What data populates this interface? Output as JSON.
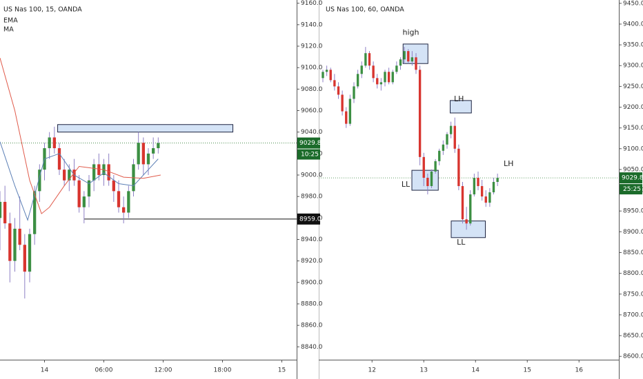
{
  "chart_data": [
    {
      "type": "candlestick",
      "title": "US Nas 100, 15, OANDA",
      "xlim": [
        -4.5,
        25.5
      ],
      "ylim": [
        8828,
        9163
      ],
      "xticks": [
        {
          "value": 0,
          "label": "14"
        },
        {
          "value": 6,
          "label": "06:00"
        },
        {
          "value": 12,
          "label": "12:00"
        },
        {
          "value": 18,
          "label": "18:00"
        },
        {
          "value": 24,
          "label": "15"
        }
      ],
      "yticks": [
        {
          "value": 9160,
          "label": "9160.0"
        },
        {
          "value": 9140,
          "label": "9140.0"
        },
        {
          "value": 9120,
          "label": "9120.0"
        },
        {
          "value": 9100,
          "label": "9100.0"
        },
        {
          "value": 9080,
          "label": "9080.0"
        },
        {
          "value": 9060,
          "label": "9060.0"
        },
        {
          "value": 9040,
          "label": "9040.0"
        },
        {
          "value": 9020,
          "label": "9020.0"
        },
        {
          "value": 9000,
          "label": "9000.0"
        },
        {
          "value": 8980,
          "label": "8980.0"
        },
        {
          "value": 8960,
          "label": "8960.0"
        },
        {
          "value": 8940,
          "label": "8940.0"
        },
        {
          "value": 8920,
          "label": "8920.0"
        },
        {
          "value": 8900,
          "label": "8900.0"
        },
        {
          "value": 8880,
          "label": "8880.0"
        },
        {
          "value": 8860,
          "label": "8860.0"
        },
        {
          "value": 8840,
          "label": "8840.0"
        }
      ],
      "up_color": "#3c8f43",
      "down_color": "#d8352f",
      "wick_color": "#8d7fc4",
      "x": [
        -4.5,
        -4.0,
        -3.5,
        -3.0,
        -2.5,
        -2.0,
        -1.5,
        -1.0,
        -0.5,
        0.0,
        0.5,
        1.0,
        1.5,
        2.0,
        2.5,
        3.0,
        3.5,
        4.0,
        4.5,
        5.0,
        5.5,
        6.0,
        6.5,
        7.0,
        7.5,
        8.0,
        8.5,
        9.0,
        9.5,
        10.0,
        10.5,
        11.0,
        11.5
      ],
      "open": [
        8960,
        8975,
        8955,
        8920,
        8950,
        8935,
        8910,
        8945,
        8985,
        9005,
        9025,
        9035,
        9025,
        9005,
        8995,
        9005,
        8995,
        8970,
        8980,
        8995,
        9010,
        9000,
        9010,
        8995,
        8985,
        8970,
        8965,
        8985,
        9010,
        9030,
        9010,
        9020,
        9025
      ],
      "high": [
        8985,
        8990,
        8965,
        8960,
        8980,
        8945,
        8950,
        8990,
        9010,
        9030,
        9040,
        9045,
        9030,
        9015,
        9010,
        9015,
        9000,
        8985,
        9000,
        9015,
        9020,
        9015,
        9020,
        9000,
        8995,
        8980,
        8990,
        9015,
        9040,
        9035,
        9025,
        9035,
        9035
      ],
      "low": [
        8930,
        8950,
        8900,
        8910,
        8930,
        8885,
        8900,
        8935,
        8975,
        8995,
        9015,
        9020,
        9000,
        8990,
        8985,
        8990,
        8965,
        8955,
        8970,
        8985,
        8995,
        8990,
        8990,
        8975,
        8965,
        8955,
        8960,
        8980,
        9005,
        9000,
        9000,
        9015,
        9020
      ],
      "close": [
        8975,
        8955,
        8920,
        8950,
        8935,
        8910,
        8945,
        8985,
        9005,
        9025,
        9035,
        9025,
        9005,
        8995,
        9005,
        8995,
        8970,
        8980,
        8995,
        9010,
        9000,
        9010,
        8995,
        8985,
        8970,
        8965,
        8985,
        9010,
        9030,
        9010,
        9020,
        9025,
        9029.8
      ],
      "series": [
        {
          "name": "EMA",
          "color": "#5b7fb5",
          "x": [
            -4.5,
            -3.0,
            -1.7,
            0.0,
            1.5,
            3.0,
            4.5,
            6.0,
            7.5,
            9.0,
            10.5,
            11.5
          ],
          "values": [
            9031,
            8990,
            8958,
            9015,
            9020,
            9000,
            8992,
            9002,
            8992,
            8990,
            9005,
            9015
          ]
        },
        {
          "name": "MA",
          "color": "#e05a4a",
          "x": [
            -4.5,
            -3.0,
            -1.5,
            -0.3,
            0.5,
            2.0,
            3.5,
            6.0,
            8.0,
            10.0,
            11.75
          ],
          "values": [
            9109,
            9060,
            8995,
            8964,
            8970,
            8990,
            9008,
            9005,
            8998,
            8997,
            9000
          ]
        }
      ],
      "zones": [
        {
          "x0": 1.33,
          "x1": 19.05,
          "y0": 9040,
          "y1": 9047
        }
      ],
      "annotations": [],
      "last_price": 9029.8,
      "countdown": "10:25",
      "level": {
        "value": 8959,
        "label": "8959.0"
      },
      "level_from": 4
    },
    {
      "type": "candlestick",
      "title": "US Nas 100, 60, OANDA",
      "xlim": [
        10.97,
        16.77
      ],
      "ylim": [
        8592,
        9458
      ],
      "xticks": [
        12,
        13,
        14,
        15,
        16
      ],
      "yticks": [
        {
          "value": 9450,
          "label": "9450.0"
        },
        {
          "value": 9400,
          "label": "9400.0"
        },
        {
          "value": 9350,
          "label": "9350.0"
        },
        {
          "value": 9300,
          "label": "9300.0"
        },
        {
          "value": 9250,
          "label": "9250.0"
        },
        {
          "value": 9200,
          "label": "9200.0"
        },
        {
          "value": 9150,
          "label": "9150.0"
        },
        {
          "value": 9100,
          "label": "9100.0"
        },
        {
          "value": 9050,
          "label": "9050.0"
        },
        {
          "value": 9000,
          "label": "9000.0"
        },
        {
          "value": 8950,
          "label": "8950.0"
        },
        {
          "value": 8900,
          "label": "8900.0"
        },
        {
          "value": 8850,
          "label": "8850.0"
        },
        {
          "value": 8800,
          "label": "8800.0"
        },
        {
          "value": 8750,
          "label": "8750.0"
        },
        {
          "value": 8700,
          "label": "8700.0"
        },
        {
          "value": 8650,
          "label": "8650.0"
        },
        {
          "value": 8600,
          "label": "8600.0"
        }
      ],
      "up_color": "#3c8f43",
      "down_color": "#d8352f",
      "wick_color": "#8d7fc4",
      "x": [
        11.05,
        11.125,
        11.2,
        11.275,
        11.35,
        11.425,
        11.5,
        11.575,
        11.65,
        11.725,
        11.8,
        11.875,
        11.95,
        12.025,
        12.1,
        12.175,
        12.25,
        12.325,
        12.4,
        12.475,
        12.55,
        12.625,
        12.7,
        12.775,
        12.85,
        12.925,
        13.0,
        13.075,
        13.15,
        13.225,
        13.3,
        13.375,
        13.45,
        13.525,
        13.6,
        13.675,
        13.75,
        13.825,
        13.9,
        13.975,
        14.05,
        14.125,
        14.2,
        14.275,
        14.35,
        14.425
      ],
      "open": [
        9270,
        9285,
        9290,
        9265,
        9250,
        9230,
        9190,
        9160,
        9220,
        9250,
        9280,
        9300,
        9330,
        9300,
        9270,
        9255,
        9260,
        9285,
        9260,
        9285,
        9300,
        9315,
        9335,
        9310,
        9320,
        9290,
        9080,
        9030,
        9010,
        9045,
        9070,
        9095,
        9110,
        9135,
        9155,
        9100,
        9010,
        8930,
        8920,
        8990,
        9030,
        9010,
        8985,
        8970,
        8995,
        9020
      ],
      "high": [
        9290,
        9300,
        9295,
        9280,
        9260,
        9240,
        9200,
        9230,
        9260,
        9290,
        9310,
        9345,
        9335,
        9310,
        9280,
        9270,
        9290,
        9295,
        9290,
        9310,
        9320,
        9345,
        9340,
        9335,
        9330,
        9300,
        9090,
        9040,
        9050,
        9075,
        9100,
        9120,
        9140,
        9165,
        9175,
        9110,
        9020,
        8960,
        9000,
        9040,
        9045,
        9025,
        9000,
        9005,
        9030,
        9040
      ],
      "low": [
        9260,
        9275,
        9260,
        9240,
        9220,
        9180,
        9150,
        9155,
        9210,
        9245,
        9270,
        9295,
        9290,
        9260,
        9245,
        9240,
        9250,
        9255,
        9255,
        9280,
        9290,
        9305,
        9305,
        9300,
        9280,
        9060,
        9010,
        8990,
        9005,
        9040,
        9060,
        9085,
        9100,
        9125,
        9090,
        9000,
        8920,
        8905,
        8915,
        8985,
        9000,
        8975,
        8960,
        8960,
        8990,
        9010
      ],
      "close": [
        9285,
        9290,
        9265,
        9250,
        9230,
        9190,
        9160,
        9220,
        9250,
        9280,
        9300,
        9330,
        9300,
        9270,
        9255,
        9260,
        9285,
        9260,
        9285,
        9300,
        9315,
        9335,
        9310,
        9320,
        9290,
        9080,
        9030,
        9010,
        9045,
        9070,
        9095,
        9110,
        9135,
        9155,
        9100,
        9010,
        8930,
        8920,
        8990,
        9030,
        9010,
        8985,
        8970,
        8995,
        9020,
        9029.8
      ],
      "series": [],
      "zones": [
        {
          "x0": 12.6,
          "x1": 13.08,
          "y0": 9305,
          "y1": 9352
        },
        {
          "x0": 13.51,
          "x1": 13.92,
          "y0": 9186,
          "y1": 9216
        },
        {
          "x0": 12.77,
          "x1": 13.28,
          "y0": 9000,
          "y1": 9048
        },
        {
          "x0": 13.53,
          "x1": 14.19,
          "y0": 8886,
          "y1": 8926
        }
      ],
      "annotations": [
        {
          "label": "high",
          "x": 12.75,
          "y": 9379
        },
        {
          "label": "LH",
          "x": 13.68,
          "y": 9219
        },
        {
          "label": "LL",
          "x": 12.65,
          "y": 9013
        },
        {
          "label": "LL",
          "x": 13.72,
          "y": 8874
        },
        {
          "label": "LH",
          "x": 14.64,
          "y": 9063
        }
      ],
      "last_price": 9029.8,
      "countdown": "25:25"
    }
  ]
}
